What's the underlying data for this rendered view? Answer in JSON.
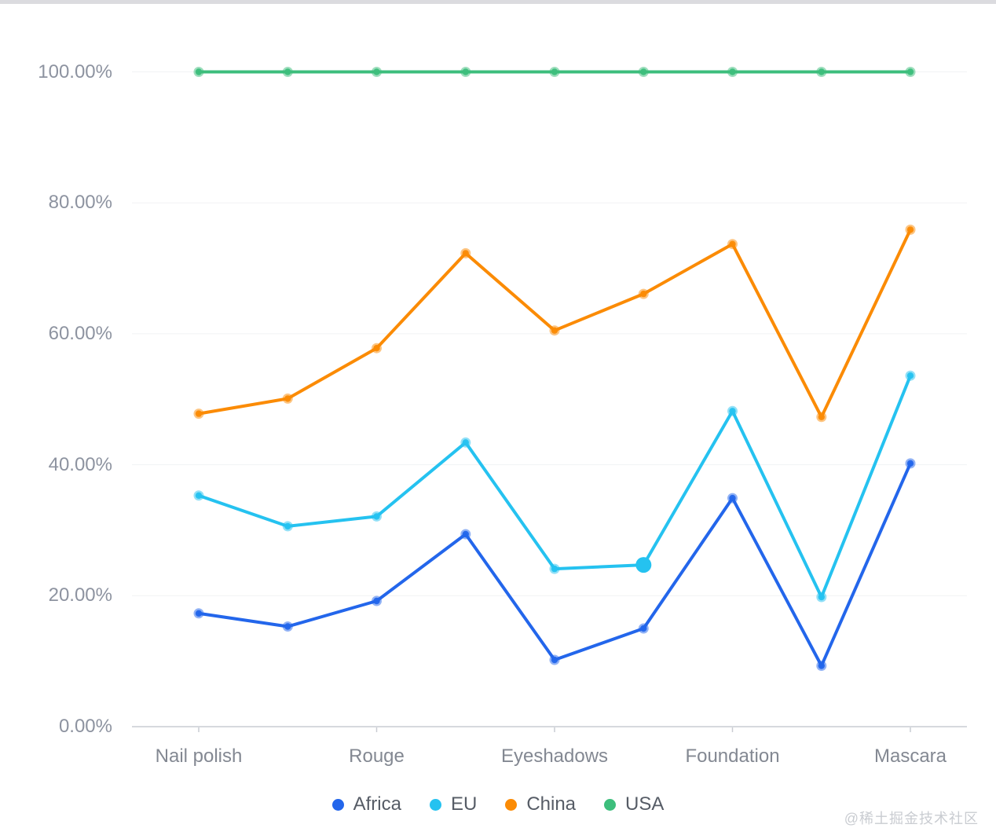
{
  "page": {
    "watermark": "@稀土掘金技术社区"
  },
  "chart_data": {
    "type": "line",
    "title": "",
    "grid": true,
    "x_axis": {
      "categories": [
        "Nail polish",
        "",
        "Rouge",
        "",
        "Eyeshadows",
        "",
        "Foundation",
        "",
        "Mascara"
      ],
      "num_points": 9
    },
    "y_axis": {
      "ticks": [
        "0.00%",
        "20.00%",
        "40.00%",
        "60.00%",
        "80.00%",
        "100.00%"
      ],
      "min": 0,
      "max": 100,
      "unit": "%"
    },
    "series": [
      {
        "name": "Africa",
        "color": "#2366eb",
        "values": [
          17.3,
          15.3,
          19.2,
          29.4,
          10.2,
          15.0,
          34.9,
          9.3,
          40.2
        ]
      },
      {
        "name": "EU",
        "color": "#25c2f0",
        "values": [
          35.3,
          30.6,
          32.1,
          43.4,
          24.1,
          24.7,
          48.2,
          19.8,
          53.6
        ],
        "emphasized_point_index": 5
      },
      {
        "name": "China",
        "color": "#fb8b05",
        "values": [
          47.8,
          50.1,
          57.8,
          72.3,
          60.5,
          66.1,
          73.7,
          47.3,
          75.9
        ]
      },
      {
        "name": "USA",
        "color": "#3dbe7c",
        "values": [
          100,
          100,
          100,
          100,
          100,
          100,
          100,
          100,
          100
        ]
      }
    ],
    "legend": {
      "position": "bottom",
      "items": [
        "Africa",
        "EU",
        "China",
        "USA"
      ]
    },
    "colors": {
      "grid_line": "#f1f2f4",
      "axis_line": "#d6d9de",
      "tick": "#c9ccd2",
      "y_label": "#8d93a0",
      "x_label": "#838892",
      "legend_text": "#565c66",
      "watermark": "#c9ccd1",
      "top_bar": "#dbdbdf"
    }
  }
}
